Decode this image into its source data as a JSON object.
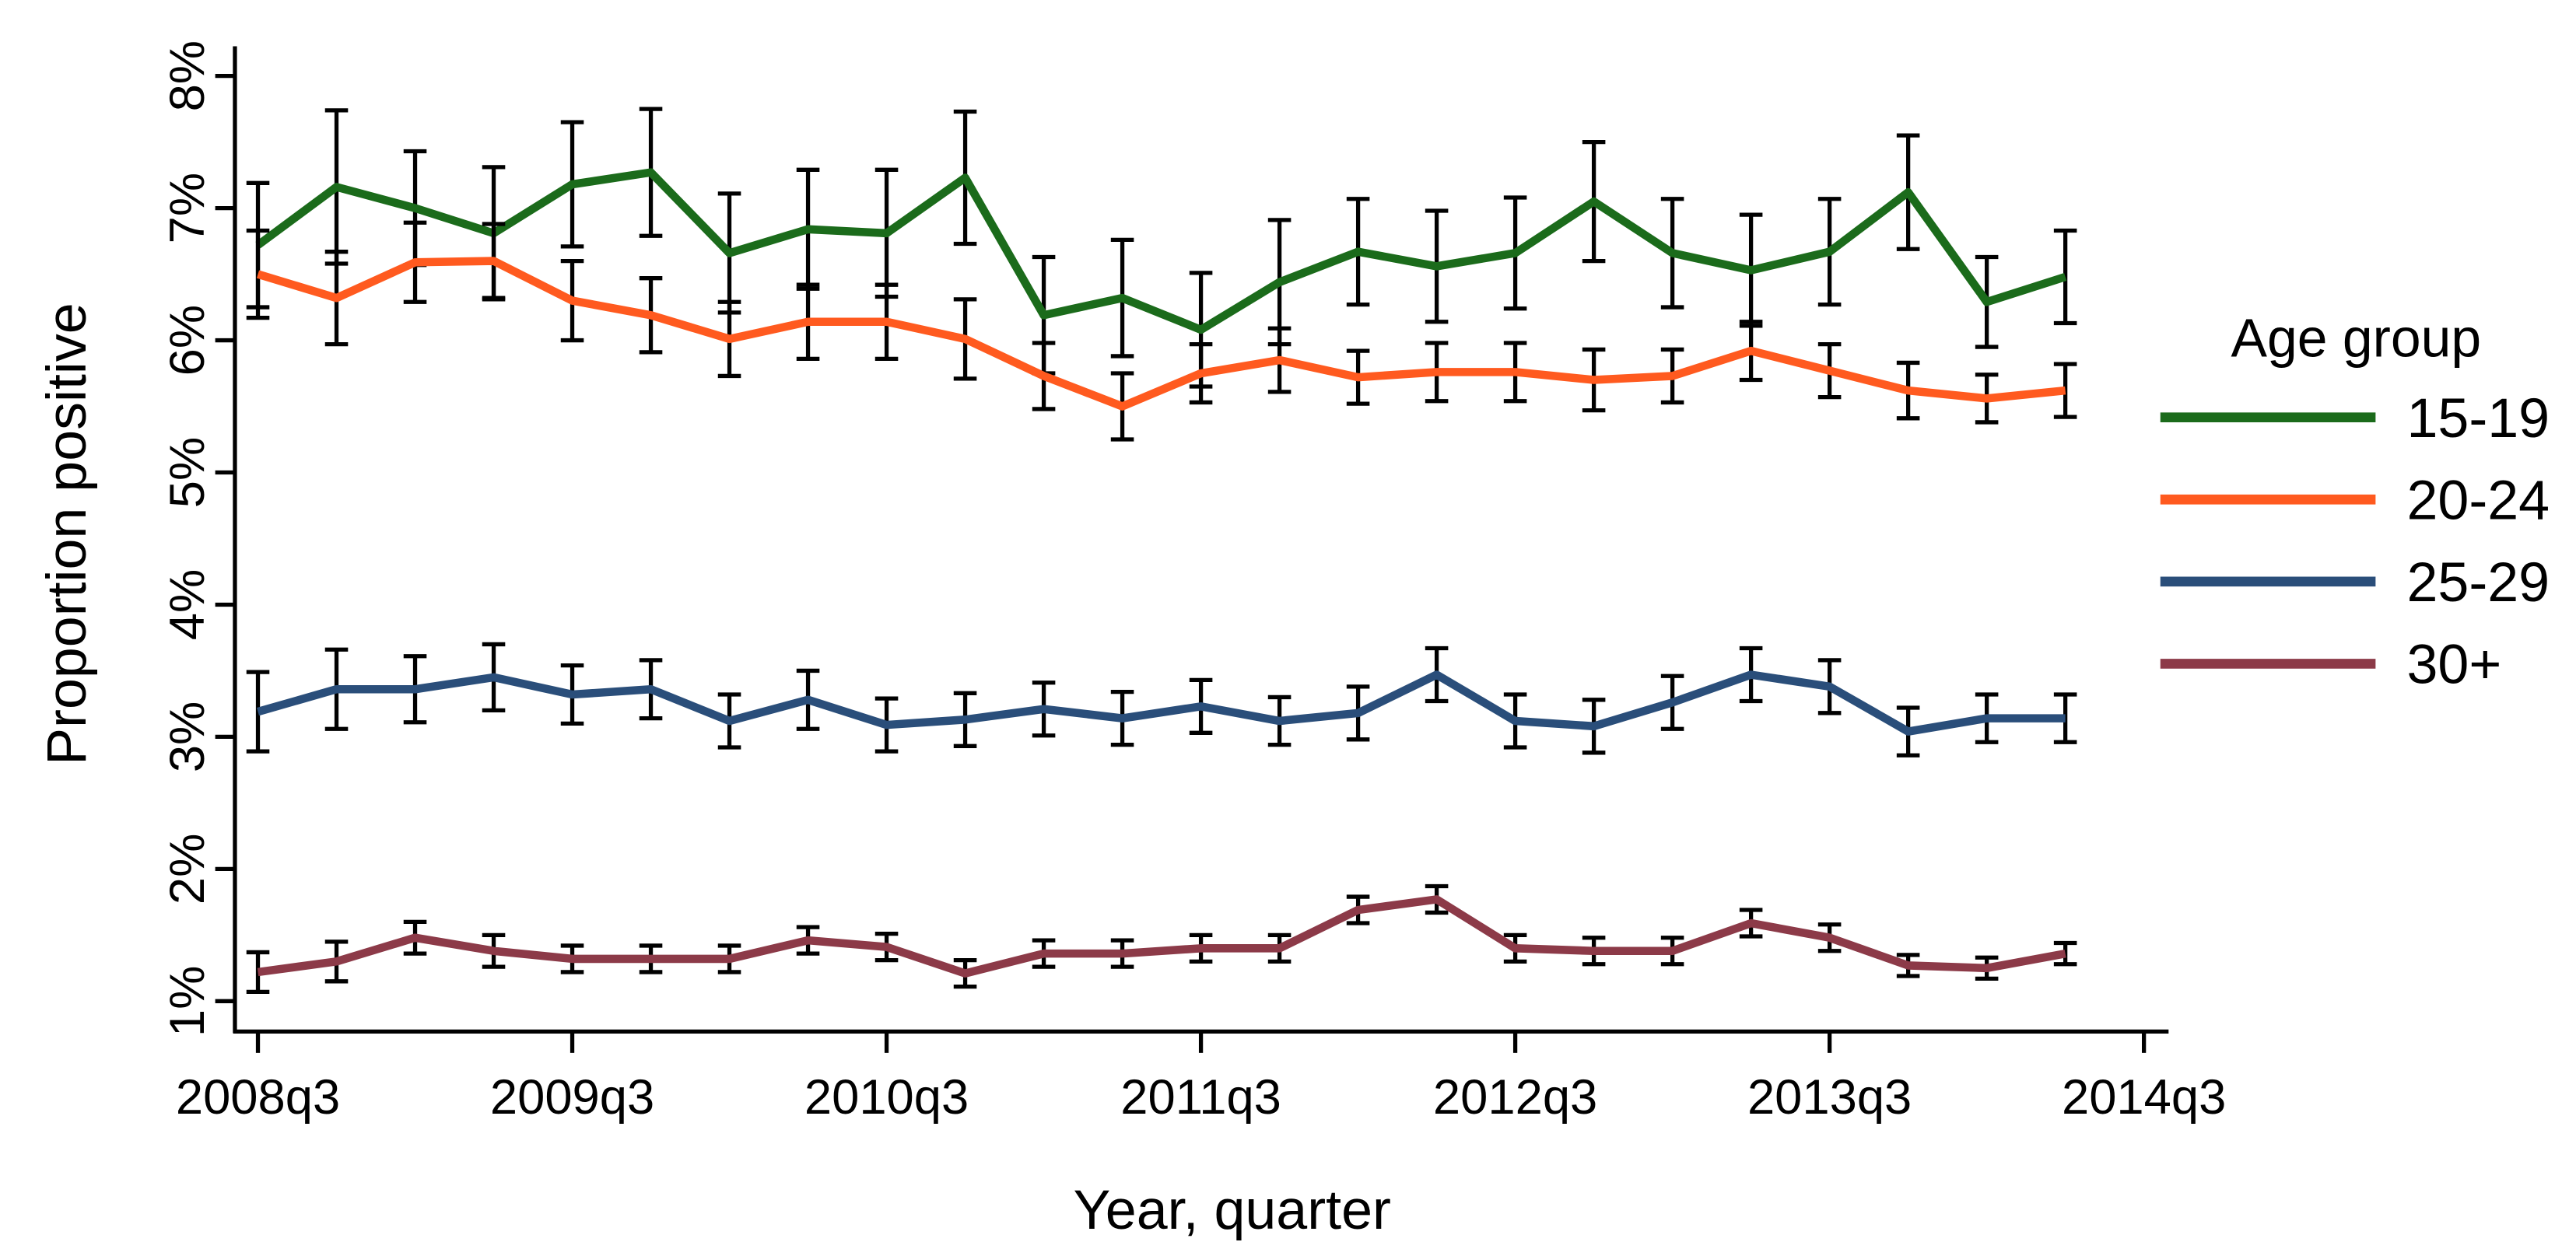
{
  "chart_data": {
    "type": "line",
    "xlabel": "Year, quarter",
    "ylabel": "Proportion positive",
    "legend_title": "Age group",
    "legend": "right",
    "categories": [
      "2008q3",
      null,
      null,
      null,
      "2009q3",
      null,
      null,
      null,
      "2010q3",
      null,
      null,
      null,
      "2011q3",
      null,
      null,
      null,
      "2012q3",
      null,
      null,
      null,
      "2013q3",
      null,
      null,
      null,
      "2014q3"
    ],
    "ylim": [
      0.77,
      8.2
    ],
    "yticks": [
      {
        "value": 1,
        "label": "1%"
      },
      {
        "value": 2,
        "label": "2%"
      },
      {
        "value": 3,
        "label": "3%"
      },
      {
        "value": 4,
        "label": "4%"
      },
      {
        "value": 5,
        "label": "5%"
      },
      {
        "value": 6,
        "label": "6%"
      },
      {
        "value": 7,
        "label": "7%"
      },
      {
        "value": 8,
        "label": "8%"
      }
    ],
    "series": [
      {
        "name": "15-19",
        "color": "#1b6b1b",
        "values": [
          6.72,
          7.16,
          7.0,
          6.81,
          7.18,
          7.27,
          6.66,
          6.84,
          6.81,
          7.23,
          6.19,
          6.32,
          6.08,
          6.44,
          6.67,
          6.56,
          6.66,
          7.05,
          6.66,
          6.53,
          6.67,
          7.12,
          6.29,
          6.48,
          null
        ],
        "errors": [
          0.47,
          0.58,
          0.43,
          0.5,
          0.47,
          0.48,
          0.45,
          0.45,
          0.48,
          0.5,
          0.44,
          0.44,
          0.43,
          0.47,
          0.4,
          0.42,
          0.42,
          0.45,
          0.41,
          0.42,
          0.4,
          0.43,
          0.34,
          0.35,
          null
        ]
      },
      {
        "name": "20-24",
        "color": "#ff5a1f",
        "values": [
          6.5,
          6.32,
          6.59,
          6.6,
          6.3,
          6.19,
          6.01,
          6.14,
          6.14,
          6.01,
          5.73,
          5.5,
          5.75,
          5.85,
          5.72,
          5.76,
          5.76,
          5.7,
          5.73,
          5.92,
          5.77,
          5.62,
          5.56,
          5.62,
          null
        ],
        "errors": [
          0.33,
          0.35,
          0.3,
          0.28,
          0.3,
          0.28,
          0.28,
          0.28,
          0.28,
          0.3,
          0.25,
          0.25,
          0.22,
          0.24,
          0.2,
          0.22,
          0.22,
          0.23,
          0.2,
          0.22,
          0.2,
          0.21,
          0.18,
          0.2,
          null
        ]
      },
      {
        "name": "25-29",
        "color": "#2a4e7a",
        "values": [
          3.19,
          3.36,
          3.36,
          3.45,
          3.32,
          3.36,
          3.12,
          3.28,
          3.09,
          3.13,
          3.21,
          3.14,
          3.23,
          3.12,
          3.18,
          3.47,
          3.12,
          3.08,
          3.26,
          3.47,
          3.38,
          3.04,
          3.14,
          3.14,
          null
        ],
        "errors": [
          0.3,
          0.3,
          0.25,
          0.25,
          0.22,
          0.22,
          0.2,
          0.22,
          0.2,
          0.2,
          0.2,
          0.2,
          0.2,
          0.18,
          0.2,
          0.2,
          0.2,
          0.2,
          0.2,
          0.2,
          0.2,
          0.18,
          0.18,
          0.18,
          null
        ]
      },
      {
        "name": "30+",
        "color": "#8c3a48",
        "values": [
          1.22,
          1.3,
          1.48,
          1.38,
          1.32,
          1.32,
          1.32,
          1.46,
          1.41,
          1.21,
          1.36,
          1.36,
          1.4,
          1.4,
          1.69,
          1.77,
          1.4,
          1.38,
          1.38,
          1.59,
          1.48,
          1.27,
          1.25,
          1.36,
          null
        ],
        "errors": [
          0.15,
          0.15,
          0.12,
          0.12,
          0.1,
          0.1,
          0.1,
          0.1,
          0.1,
          0.1,
          0.1,
          0.1,
          0.1,
          0.1,
          0.1,
          0.1,
          0.1,
          0.1,
          0.1,
          0.1,
          0.1,
          0.08,
          0.08,
          0.08,
          null
        ]
      }
    ]
  }
}
